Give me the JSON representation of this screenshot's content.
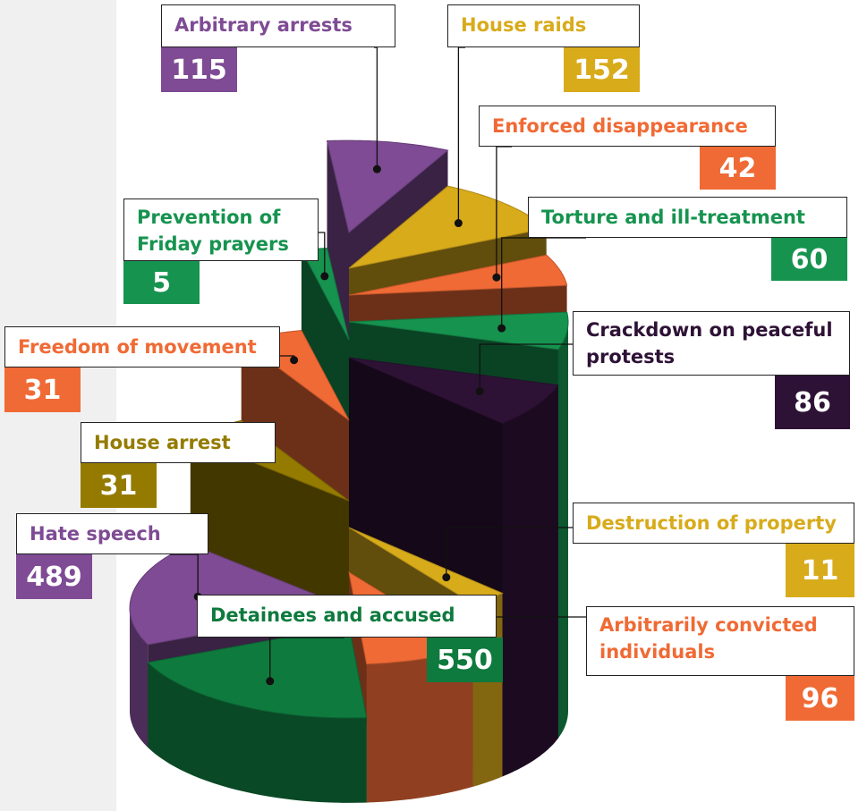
{
  "chart_data": {
    "type": "spiral-pie",
    "categories": [
      "Arbitrary arrests",
      "House raids",
      "Enforced disappearance",
      "Torture and ill-treatment",
      "Crackdown on peaceful protests",
      "Destruction of property",
      "Arbitrarily convicted individuals",
      "Detainees and accused",
      "Hate speech",
      "House arrest",
      "Freedom of movement",
      "Prevention of Friday prayers"
    ],
    "values": [
      115,
      152,
      42,
      60,
      86,
      11,
      96,
      550,
      489,
      31,
      31,
      5
    ],
    "colors": [
      "#7e4b94",
      "#d8ab1b",
      "#f06a35",
      "#16934f",
      "#2e1236",
      "#d8ab1b",
      "#f06a35",
      "#0f7a3e",
      "#7e4b94",
      "#947b00",
      "#f06a35",
      "#16934f"
    ]
  }
}
